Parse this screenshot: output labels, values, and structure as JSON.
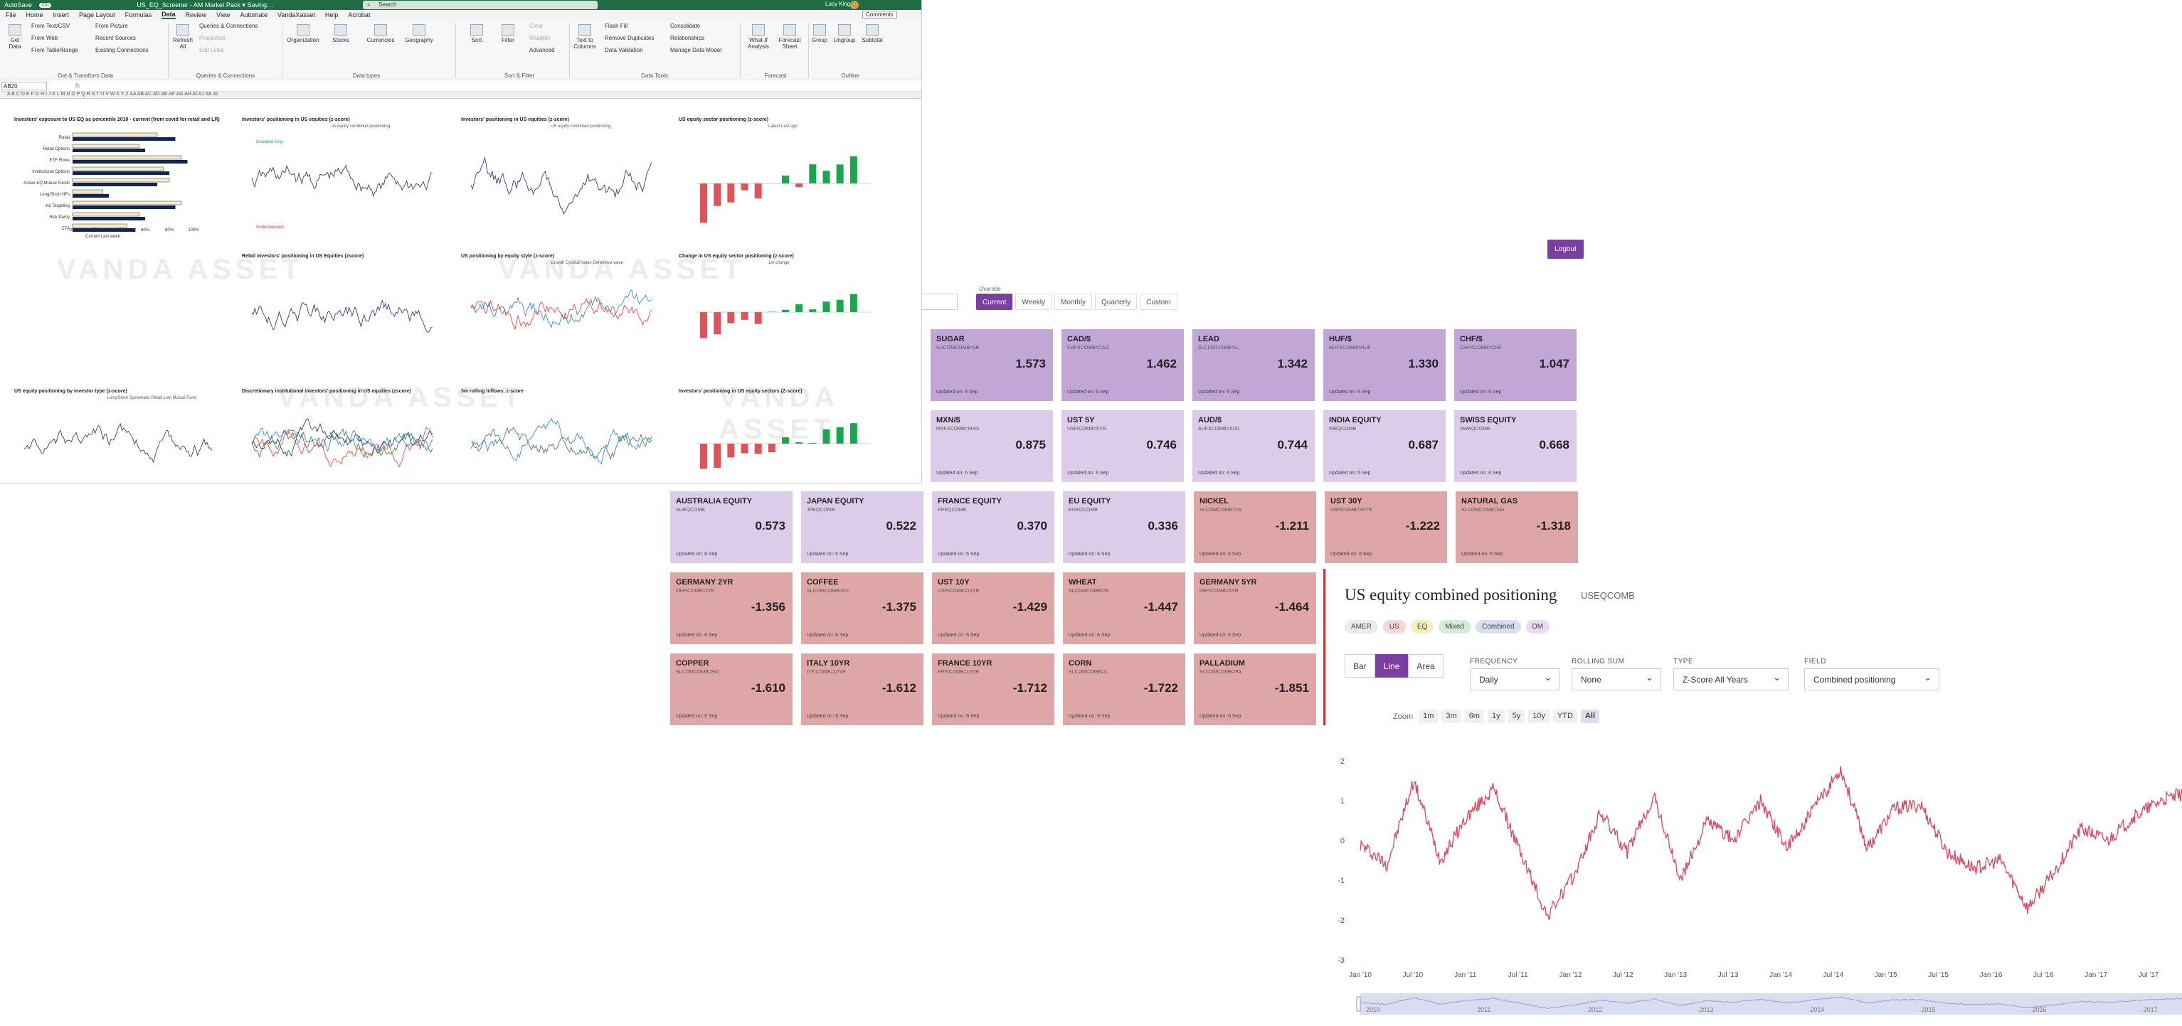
{
  "excel": {
    "autosave": "AutoSave",
    "autosave_state": "On",
    "file_name": "US_EQ_Screener - AM Market Pack ▾ Saving…",
    "search_placeholder": "Search",
    "user": "Lucy King",
    "user_initials": "LK",
    "comments": "Comments",
    "menus": [
      "File",
      "Home",
      "Insert",
      "Page Layout",
      "Formulas",
      "Data",
      "Review",
      "View",
      "Automate",
      "VandaXasset",
      "Help",
      "Acrobat"
    ],
    "active_menu": "Data",
    "ribbon": {
      "get_data": "Get Data",
      "from_text_csv": "From Text/CSV",
      "from_web": "From Web",
      "from_table_range": "From Table/Range",
      "from_picture": "From Picture",
      "recent_sources": "Recent Sources",
      "existing_connections": "Existing Connections",
      "group_get_transform": "Get & Transform Data",
      "refresh_all": "Refresh All",
      "queries_connections": "Queries & Connections",
      "properties": "Properties",
      "edit_links": "Edit Links",
      "group_queries": "Queries & Connections",
      "organization": "Organization",
      "stocks": "Stocks",
      "currencies": "Currencies",
      "geography": "Geography",
      "group_data_types": "Data types",
      "sort": "Sort",
      "filter": "Filter",
      "clear": "Clear",
      "reapply": "Reapply",
      "advanced": "Advanced",
      "group_sort_filter": "Sort & Filter",
      "text_to_columns": "Text to Columns",
      "flash_fill": "Flash Fill",
      "remove_duplicates": "Remove Duplicates",
      "data_validation": "Data Validation",
      "consolidate": "Consolidate",
      "relationships": "Relationships",
      "manage_data_model": "Manage Data Model",
      "group_data_tools": "Data Tools",
      "what_if": "What-If Analysis",
      "forecast_sheet": "Forecast Sheet",
      "group_forecast": "Forecast",
      "group": "Group",
      "ungroup": "Ungroup",
      "subtotal": "Subtotal",
      "group_outline": "Outline"
    },
    "name_box": "AB20",
    "fx": "fx",
    "columns": "A B C  D   E   F   G   H   I   J   K   L   M   N   O   P   Q   R   S   T   U   V   W   X   Y   Z   AA  AB  AC  AD  AE  AF  AG  AH  AI  AJ  AK  AL",
    "mini_charts": [
      {
        "title": "Investors' exposure to US EQ as percentile 2010 - current (from covid for retail and LR)"
      },
      {
        "title": "Investors' positioning in US equities (z-score)",
        "legend": "us equity combined positioning",
        "notes": [
          "Crowded long",
          "Underinvested"
        ]
      },
      {
        "title": "Investors' positioning in US equities (z-score)",
        "legend": "US equity combined positioning"
      },
      {
        "title": "US equity sector positioning (z-score)",
        "legend": "Latest  Last ago"
      },
      {
        "title": "Retail investors' positioning in US Equities (zscore)"
      },
      {
        "title": "US positioning by equity style (z-score)",
        "legend": "Growth  Cyclical value  Defensive value"
      },
      {
        "title": "Change in US equity sector positioning (z-score)",
        "legend": "1m change"
      },
      {
        "title": "US equity positioning by investor type (z-score)",
        "legend": "Long/Short  Systematic  Retail cum  Mutual Fund"
      },
      {
        "title": "Discretionary institutional investors' positioning in US equities (zscore)"
      },
      {
        "title": "3m rolling inflows, z-score"
      },
      {
        "title": "Investors' positioning in US equity sectors (Z-score)"
      }
    ],
    "bar_rows": [
      "Retail",
      "Retail Options",
      "ETF Flows",
      "Institutional Options",
      "Active EQ Mutual Funds",
      "Long/Short HFs",
      "Vol Targeting",
      "Risk Parity",
      "CTA"
    ],
    "bar_axis": [
      "0%",
      "20%",
      "40%",
      "60%",
      "80%",
      "100%"
    ],
    "bar_legend": "Current  Last week",
    "watermark": "VANDA ASSET"
  },
  "vanda": {
    "logout": "Logout",
    "override_label": "Override",
    "periods": [
      "Current",
      "Weekly",
      "Monthly",
      "Quarterly",
      "Custom"
    ],
    "active_period": "Current",
    "colors": {
      "purple_dark": "#c1a6d6",
      "purple_light": "#dcccea",
      "red": "#dea6a6",
      "accent": "#7b3fa1",
      "line": "#d9475a"
    },
    "tiles": [
      {
        "name": "SUGAR",
        "code": "SUCOMCOMB=SB",
        "value": "1.573",
        "updated": "Updated on: 6 Sep",
        "tone": "dark"
      },
      {
        "name": "CAD/$",
        "code": "CAFXCOMB=CAD",
        "value": "1.462",
        "updated": "Updated on: 6 Sep",
        "tone": "dark"
      },
      {
        "name": "LEAD",
        "code": "SLCOMCOMB=LL",
        "value": "1.342",
        "updated": "Updated on: 6 Sep",
        "tone": "dark"
      },
      {
        "name": "HUF/$",
        "code": "HUFXCOMB=HUF",
        "value": "1.330",
        "updated": "Updated on: 6 Sep",
        "tone": "dark"
      },
      {
        "name": "CHF/$",
        "code": "CHFXCOMB=CHF",
        "value": "1.047",
        "updated": "Updated on: 6 Sep",
        "tone": "dark"
      },
      {
        "name": "MXN/$",
        "code": "MXFXCOMB=MXN",
        "value": "0.875",
        "updated": "Updated on: 6 Sep",
        "tone": "light"
      },
      {
        "name": "UST 5Y",
        "code": "USFICOMB=5YR",
        "value": "0.746",
        "updated": "Updated on: 6 Sep",
        "tone": "light"
      },
      {
        "name": "AUD/$",
        "code": "AUFXCOMB=AUD",
        "value": "0.744",
        "updated": "Updated on: 6 Sep",
        "tone": "light"
      },
      {
        "name": "INDIA EQUITY",
        "code": "INEQCOMB",
        "value": "0.687",
        "updated": "Updated on: 5 Sep",
        "tone": "light"
      },
      {
        "name": "SWISS EQUITY",
        "code": "SWEQCOMB",
        "value": "0.668",
        "updated": "Updated on: 6 Sep",
        "tone": "light"
      },
      {
        "name": "AUSTRALIA EQUITY",
        "code": "AUEQCOMB",
        "value": "0.573",
        "updated": "Updated on: 6 Sep",
        "tone": "light"
      },
      {
        "name": "JAPAN EQUITY",
        "code": "JPEQCOMB",
        "value": "0.522",
        "updated": "Updated on: 6 Sep",
        "tone": "light"
      },
      {
        "name": "FRANCE EQUITY",
        "code": "FREQCOMB",
        "value": "0.370",
        "updated": "Updated on: 6 Sep",
        "tone": "light"
      },
      {
        "name": "EU EQUITY",
        "code": "EUEQCOMB",
        "value": "0.336",
        "updated": "Updated on: 6 Sep",
        "tone": "light"
      },
      {
        "name": "NICKEL",
        "code": "SLCOMCOMB=LN",
        "value": "-1.211",
        "updated": "Updated on: 6 Sep",
        "tone": "red"
      },
      {
        "name": "UST 30Y",
        "code": "USFICOMB=30YR",
        "value": "-1.222",
        "updated": "Updated on: 6 Sep",
        "tone": "red"
      },
      {
        "name": "NATURAL GAS",
        "code": "SLCOMCOMB=NG",
        "value": "-1.318",
        "updated": "Updated on: 6 Sep",
        "tone": "red"
      },
      {
        "name": "GERMANY 2YR",
        "code": "DEFICOMB=2YR",
        "value": "-1.356",
        "updated": "Updated on: 6 Sep",
        "tone": "red"
      },
      {
        "name": "COFFEE",
        "code": "SLCOMCOMB=KC",
        "value": "-1.375",
        "updated": "Updated on: 6 Sep",
        "tone": "red"
      },
      {
        "name": "UST 10Y",
        "code": "USFICOMB=10YR",
        "value": "-1.429",
        "updated": "Updated on: 6 Sep",
        "tone": "red"
      },
      {
        "name": "WHEAT",
        "code": "SLCOMCOMB=W",
        "value": "-1.447",
        "updated": "Updated on: 6 Sep",
        "tone": "red"
      },
      {
        "name": "GERMANY 5YR",
        "code": "DEFICOMB=5YR",
        "value": "-1.464",
        "updated": "Updated on: 6 Sep",
        "tone": "red"
      },
      {
        "name": "COPPER",
        "code": "SLCOMCOMB=HG",
        "value": "-1.610",
        "updated": "Updated on: 6 Sep",
        "tone": "red"
      },
      {
        "name": "ITALY 10YR",
        "code": "ITFICOMB=10YR",
        "value": "-1.612",
        "updated": "Updated on: 6 Sep",
        "tone": "red"
      },
      {
        "name": "FRANCE 10YR",
        "code": "FRFICOMB=10YR",
        "value": "-1.712",
        "updated": "Updated on: 6 Sep",
        "tone": "red"
      },
      {
        "name": "CORN",
        "code": "SLCOMCOMB=C",
        "value": "-1.722",
        "updated": "Updated on: 6 Sep",
        "tone": "red"
      },
      {
        "name": "PALLADIUM",
        "code": "SLCOMCOMB=PA",
        "value": "-1.851",
        "updated": "Updated on: 6 Sep",
        "tone": "red"
      }
    ],
    "panel": {
      "title": "US equity combined positioning",
      "ticker": "USEQCOMB",
      "regions": [
        {
          "label": "AMER",
          "color": "#ececec"
        },
        {
          "label": "US",
          "color": "#f6d6d6"
        },
        {
          "label": "EQ",
          "color": "#f8efbf"
        },
        {
          "label": "Mixed",
          "color": "#d4ecd4"
        },
        {
          "label": "Combined",
          "color": "#d6e0f2"
        },
        {
          "label": "DM",
          "color": "#ead9f0"
        }
      ],
      "chart_types": [
        "Bar",
        "Line",
        "Area"
      ],
      "active_chart_type": "Line",
      "frequency_label": "FREQUENCY",
      "frequency": "Daily",
      "rolling_label": "ROLLING SUM",
      "rolling": "None",
      "type_label": "TYPE",
      "type": "Z-Score All Years",
      "field_label": "FIELD",
      "field": "Combined positioning",
      "zoom_label": "Zoom",
      "zoom": [
        "1m",
        "3m",
        "6m",
        "1y",
        "5y",
        "10y",
        "YTD",
        "All"
      ],
      "active_zoom": "All",
      "navigator_years": [
        "2010",
        "2011",
        "2012",
        "2013",
        "2014",
        "2015",
        "2016",
        "2017"
      ]
    }
  },
  "chart_data": {
    "type": "line",
    "title": "US equity combined positioning",
    "xlabel": "",
    "ylabel": "",
    "ylim": [
      -3,
      2
    ],
    "yticks": [
      2,
      1,
      0,
      -1,
      -2,
      -3
    ],
    "x_ticks": [
      "Jan '10",
      "Jul '10",
      "Jan '11",
      "Jul '11",
      "Jan '12",
      "Jul '12",
      "Jan '13",
      "Jul '13",
      "Jan '14",
      "Jul '14",
      "Jan '15",
      "Jul '15",
      "Jan '16",
      "Jul '16",
      "Jan '17",
      "Jul '17"
    ],
    "x": [
      "2010-01",
      "2010-04",
      "2010-07",
      "2010-10",
      "2011-01",
      "2011-04",
      "2011-07",
      "2011-10",
      "2012-01",
      "2012-04",
      "2012-07",
      "2012-10",
      "2013-01",
      "2013-04",
      "2013-07",
      "2013-10",
      "2014-01",
      "2014-04",
      "2014-07",
      "2014-10",
      "2015-01",
      "2015-04",
      "2015-07",
      "2015-10",
      "2016-01",
      "2016-04",
      "2016-07",
      "2016-10",
      "2017-01",
      "2017-04",
      "2017-07",
      "2017-09"
    ],
    "series": [
      {
        "values": [
          -0.1,
          -0.6,
          1.5,
          -0.5,
          0.6,
          1.3,
          -0.3,
          -1.9,
          -0.9,
          0.7,
          -0.3,
          1.1,
          -1.0,
          0.5,
          0.0,
          1.0,
          -0.2,
          0.8,
          1.8,
          -0.2,
          0.8,
          0.9,
          -0.3,
          -0.7,
          -0.5,
          -1.7,
          -0.8,
          0.3,
          0.0,
          0.6,
          1.0,
          1.2
        ]
      }
    ],
    "grid": false,
    "legend": "none"
  }
}
